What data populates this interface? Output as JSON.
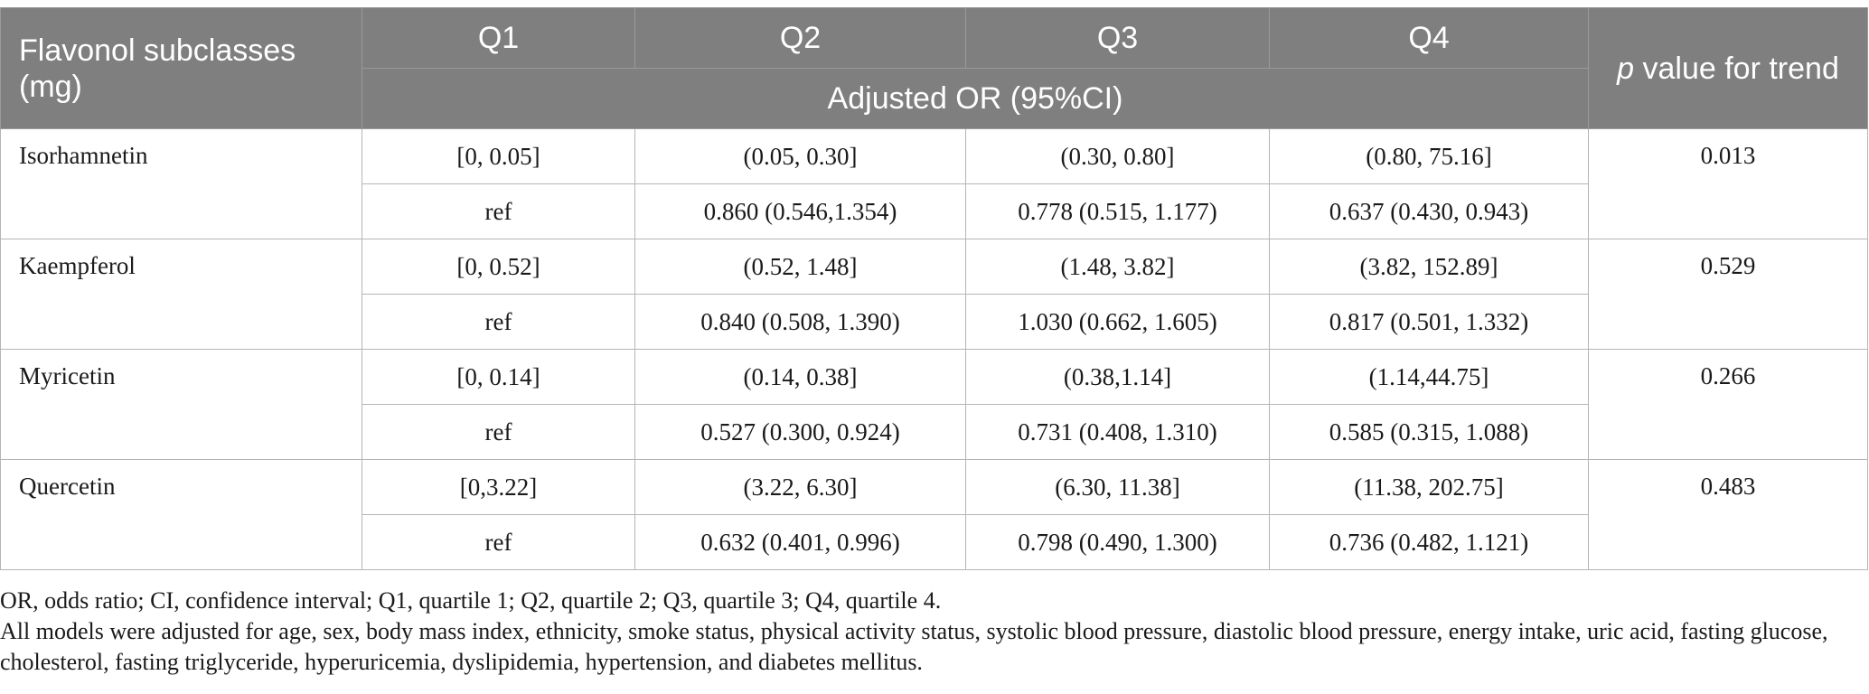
{
  "table": {
    "header": {
      "label_col": "Flavonol subclasses (mg)",
      "quartiles": [
        "Q1",
        "Q2",
        "Q3",
        "Q4"
      ],
      "subheader": "Adjusted OR (95%CI)",
      "p_italic": "p",
      "p_rest": " value for trend"
    },
    "rows": [
      {
        "name": "Isorhamnetin",
        "ranges": [
          "[0, 0.05]",
          "(0.05, 0.30]",
          "(0.30, 0.80]",
          "(0.80, 75.16]"
        ],
        "ors": [
          "ref",
          "0.860 (0.546,1.354)",
          "0.778 (0.515, 1.177)",
          "0.637 (0.430, 0.943)"
        ],
        "p": "0.013"
      },
      {
        "name": "Kaempferol",
        "ranges": [
          "[0, 0.52]",
          "(0.52, 1.48]",
          "(1.48, 3.82]",
          "(3.82, 152.89]"
        ],
        "ors": [
          "ref",
          "0.840 (0.508, 1.390)",
          "1.030 (0.662, 1.605)",
          "0.817 (0.501, 1.332)"
        ],
        "p": "0.529"
      },
      {
        "name": "Myricetin",
        "ranges": [
          "[0, 0.14]",
          "(0.14, 0.38]",
          "(0.38,1.14]",
          "(1.14,44.75]"
        ],
        "ors": [
          "ref",
          "0.527 (0.300, 0.924)",
          "0.731 (0.408, 1.310)",
          "0.585 (0.315, 1.088)"
        ],
        "p": "0.266"
      },
      {
        "name": "Quercetin",
        "ranges": [
          "[0,3.22]",
          "(3.22, 6.30]",
          "(6.30, 11.38]",
          "(11.38, 202.75]"
        ],
        "ors": [
          "ref",
          "0.632 (0.401, 0.996)",
          "0.798 (0.490, 1.300)",
          "0.736 (0.482, 1.121)"
        ],
        "p": "0.483"
      }
    ]
  },
  "notes": {
    "abbreviations": "OR, odds ratio; CI, confidence interval; Q1, quartile 1; Q2, quartile 2; Q3, quartile 3; Q4, quartile 4.",
    "adjustment": "All models were adjusted for age, sex, body mass index, ethnicity, smoke status, physical activity status, systolic blood pressure, diastolic blood pressure, energy intake, uric acid, fasting glucose, cholesterol, fasting triglyceride, hyperuricemia, dyslipidemia, hypertension, and diabetes mellitus."
  },
  "colors": {
    "header_bg": "#7f7f7f",
    "header_text": "#ffffff",
    "border": "#b5b5b5"
  }
}
